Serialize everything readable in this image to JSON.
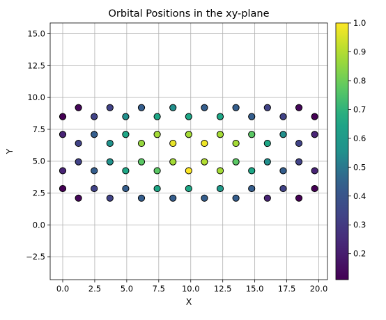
{
  "chart_data": {
    "type": "scatter",
    "title": "Orbital Positions in the xy-plane",
    "xlabel": "X",
    "ylabel": "Y",
    "xlim": [
      -0.98,
      20.68
    ],
    "ylim": [
      -4.3,
      15.85
    ],
    "xticks": [
      0.0,
      2.5,
      5.0,
      7.5,
      10.0,
      12.5,
      15.0,
      17.5,
      20.0
    ],
    "xtick_labels": [
      "0.0",
      "2.5",
      "5.0",
      "7.5",
      "10.0",
      "12.5",
      "15.0",
      "17.5",
      "20.0"
    ],
    "yticks": [
      -2.5,
      0.0,
      2.5,
      5.0,
      7.5,
      10.0,
      12.5,
      15.0
    ],
    "ytick_labels": [
      "−2.5",
      "0.0",
      "2.5",
      "5.0",
      "7.5",
      "10.0",
      "12.5",
      "15.0"
    ],
    "grid": true,
    "colormap": "viridis",
    "colorbar": {
      "range": [
        0.11,
        1.0
      ],
      "ticks": [
        0.2,
        0.3,
        0.4,
        0.5,
        0.6,
        0.7,
        0.8,
        0.9,
        1.0
      ],
      "tick_labels": [
        "0.2",
        "0.3",
        "0.4",
        "0.5",
        "0.6",
        "0.7",
        "0.8",
        "0.9",
        "1.0"
      ]
    },
    "points": [
      {
        "x": 0.0,
        "y": 8.5,
        "c": 0.11
      },
      {
        "x": 0.0,
        "y": 7.1,
        "c": 0.22
      },
      {
        "x": 0.0,
        "y": 4.25,
        "c": 0.22
      },
      {
        "x": 0.0,
        "y": 2.85,
        "c": 0.11
      },
      {
        "x": 1.23,
        "y": 9.2,
        "c": 0.13
      },
      {
        "x": 1.23,
        "y": 6.4,
        "c": 0.33
      },
      {
        "x": 1.23,
        "y": 4.95,
        "c": 0.33
      },
      {
        "x": 1.23,
        "y": 2.1,
        "c": 0.13
      },
      {
        "x": 2.46,
        "y": 8.5,
        "c": 0.33
      },
      {
        "x": 2.46,
        "y": 7.1,
        "c": 0.44
      },
      {
        "x": 2.46,
        "y": 4.25,
        "c": 0.44
      },
      {
        "x": 2.46,
        "y": 2.85,
        "c": 0.33
      },
      {
        "x": 3.69,
        "y": 9.2,
        "c": 0.33
      },
      {
        "x": 3.69,
        "y": 6.4,
        "c": 0.56
      },
      {
        "x": 3.69,
        "y": 4.95,
        "c": 0.56
      },
      {
        "x": 3.69,
        "y": 2.1,
        "c": 0.33
      },
      {
        "x": 4.92,
        "y": 8.5,
        "c": 0.55
      },
      {
        "x": 4.92,
        "y": 7.1,
        "c": 0.66
      },
      {
        "x": 4.92,
        "y": 4.25,
        "c": 0.66
      },
      {
        "x": 4.92,
        "y": 2.85,
        "c": 0.44
      },
      {
        "x": 6.15,
        "y": 9.2,
        "c": 0.44
      },
      {
        "x": 6.15,
        "y": 6.4,
        "c": 0.86
      },
      {
        "x": 6.15,
        "y": 4.95,
        "c": 0.77
      },
      {
        "x": 6.15,
        "y": 2.1,
        "c": 0.44
      },
      {
        "x": 7.38,
        "y": 8.5,
        "c": 0.66
      },
      {
        "x": 7.38,
        "y": 7.1,
        "c": 0.88
      },
      {
        "x": 7.38,
        "y": 4.25,
        "c": 0.77
      },
      {
        "x": 7.38,
        "y": 2.85,
        "c": 0.66
      },
      {
        "x": 8.61,
        "y": 9.2,
        "c": 0.55
      },
      {
        "x": 8.61,
        "y": 6.4,
        "c": 0.97
      },
      {
        "x": 8.61,
        "y": 4.95,
        "c": 0.88
      },
      {
        "x": 8.61,
        "y": 2.1,
        "c": 0.44
      },
      {
        "x": 9.84,
        "y": 8.5,
        "c": 0.66
      },
      {
        "x": 9.84,
        "y": 7.1,
        "c": 0.88
      },
      {
        "x": 9.84,
        "y": 4.25,
        "c": 1.0
      },
      {
        "x": 9.84,
        "y": 2.85,
        "c": 0.66
      },
      {
        "x": 11.07,
        "y": 9.2,
        "c": 0.44
      },
      {
        "x": 11.07,
        "y": 6.4,
        "c": 0.98
      },
      {
        "x": 11.07,
        "y": 4.95,
        "c": 0.9
      },
      {
        "x": 11.07,
        "y": 2.1,
        "c": 0.44
      },
      {
        "x": 12.3,
        "y": 8.5,
        "c": 0.66
      },
      {
        "x": 12.3,
        "y": 7.1,
        "c": 0.88
      },
      {
        "x": 12.3,
        "y": 4.25,
        "c": 0.88
      },
      {
        "x": 12.3,
        "y": 2.85,
        "c": 0.6
      },
      {
        "x": 13.53,
        "y": 9.2,
        "c": 0.44
      },
      {
        "x": 13.53,
        "y": 6.4,
        "c": 0.88
      },
      {
        "x": 13.53,
        "y": 4.95,
        "c": 0.77
      },
      {
        "x": 13.53,
        "y": 2.1,
        "c": 0.44
      },
      {
        "x": 14.76,
        "y": 8.5,
        "c": 0.44
      },
      {
        "x": 14.76,
        "y": 7.1,
        "c": 0.77
      },
      {
        "x": 14.76,
        "y": 4.25,
        "c": 0.66
      },
      {
        "x": 14.76,
        "y": 2.85,
        "c": 0.44
      },
      {
        "x": 15.99,
        "y": 9.2,
        "c": 0.33
      },
      {
        "x": 15.99,
        "y": 6.4,
        "c": 0.66
      },
      {
        "x": 15.99,
        "y": 4.95,
        "c": 0.55
      },
      {
        "x": 15.99,
        "y": 2.1,
        "c": 0.22
      },
      {
        "x": 17.22,
        "y": 8.5,
        "c": 0.33
      },
      {
        "x": 17.22,
        "y": 7.1,
        "c": 0.55
      },
      {
        "x": 17.22,
        "y": 4.25,
        "c": 0.44
      },
      {
        "x": 17.22,
        "y": 2.85,
        "c": 0.33
      },
      {
        "x": 18.45,
        "y": 9.2,
        "c": 0.13
      },
      {
        "x": 18.45,
        "y": 6.4,
        "c": 0.33
      },
      {
        "x": 18.45,
        "y": 4.95,
        "c": 0.33
      },
      {
        "x": 18.45,
        "y": 2.1,
        "c": 0.11
      },
      {
        "x": 19.68,
        "y": 8.5,
        "c": 0.11
      },
      {
        "x": 19.68,
        "y": 7.1,
        "c": 0.22
      },
      {
        "x": 19.68,
        "y": 4.25,
        "c": 0.22
      },
      {
        "x": 19.68,
        "y": 2.85,
        "c": 0.11
      }
    ]
  },
  "colors": {
    "grid": "#b0b0b0",
    "marker_edge": "#000000",
    "axes": "#000000"
  }
}
